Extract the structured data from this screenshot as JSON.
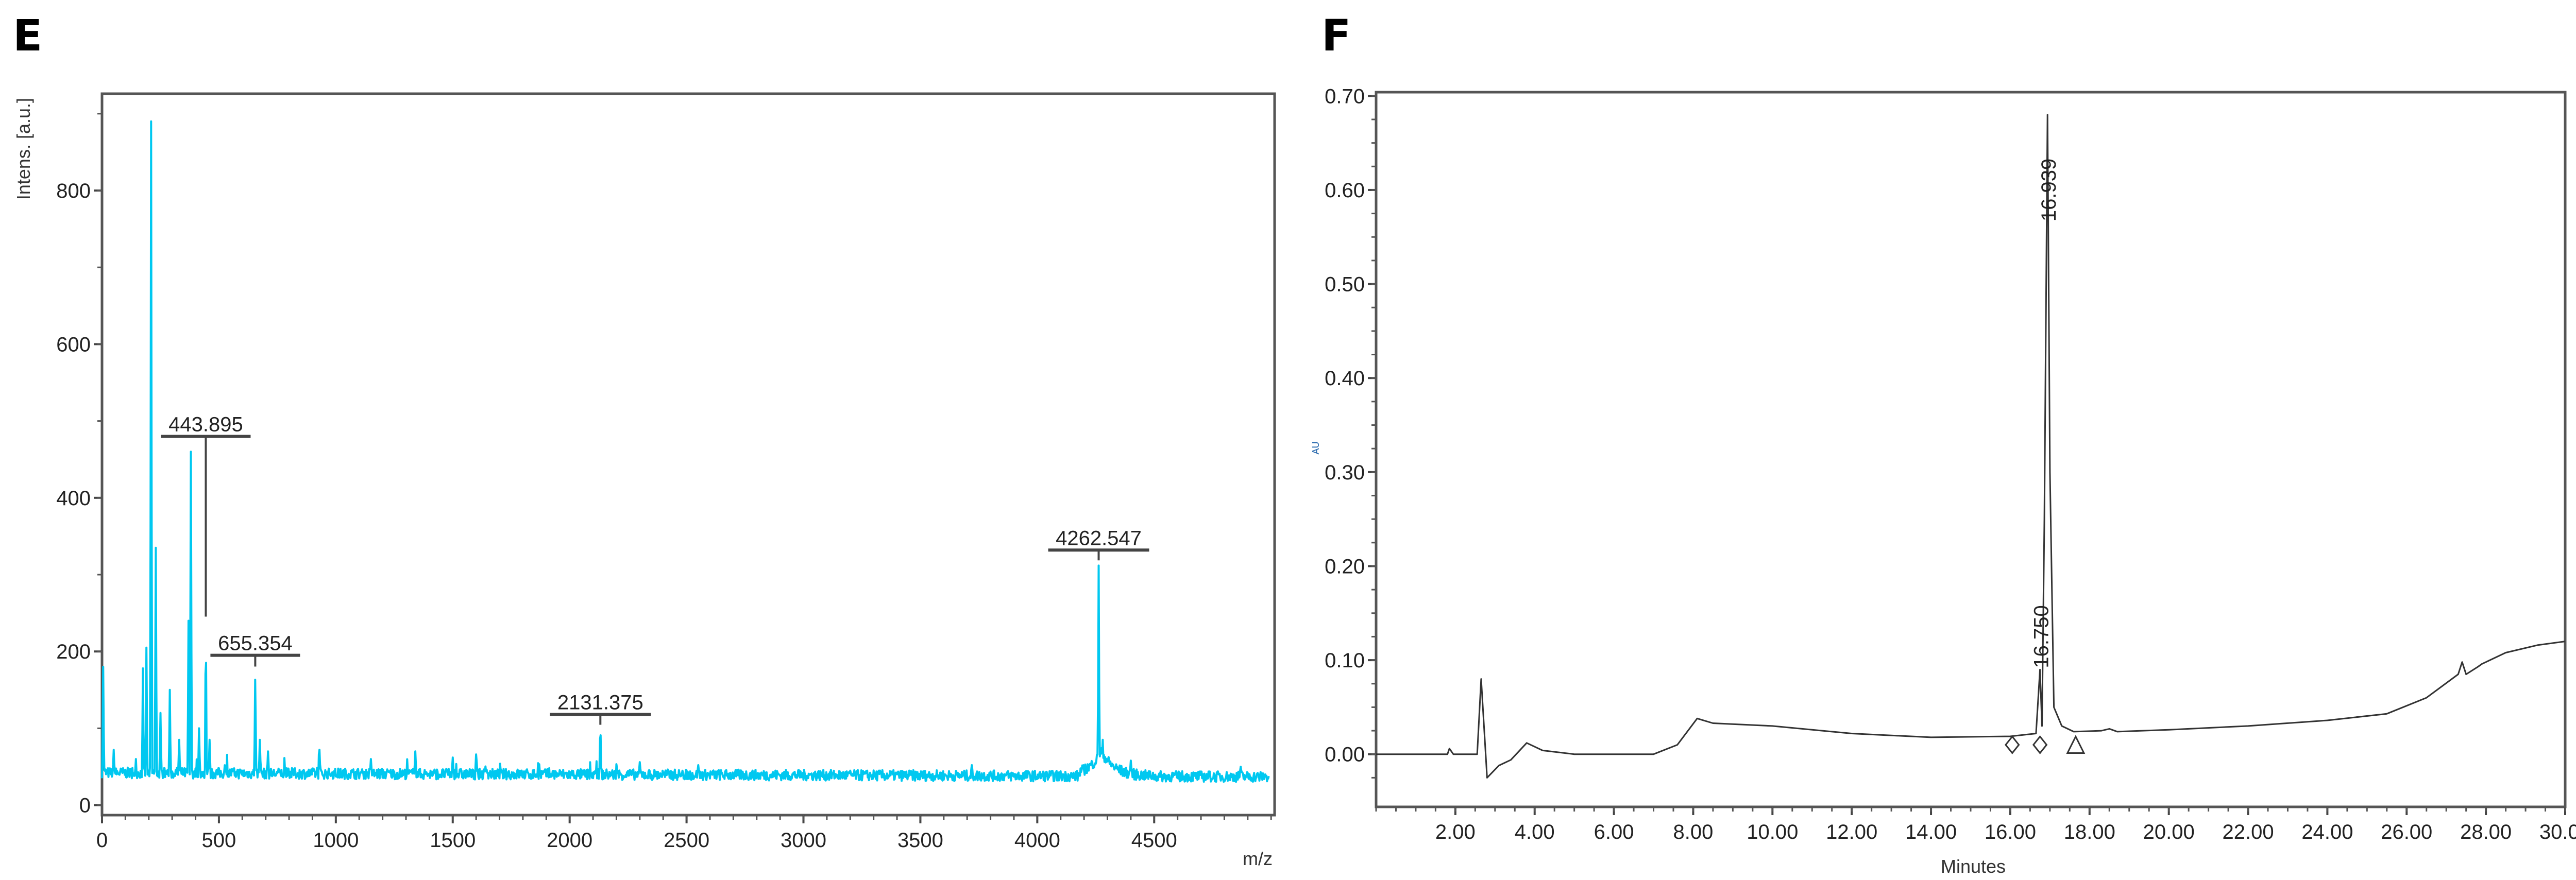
{
  "chart_data": [
    {
      "panel": "E",
      "type": "line",
      "title": "",
      "xlabel": "m/z",
      "ylabel": "Intens. [a.u.]",
      "xlim": [
        0,
        5015
      ],
      "ylim": [
        -13,
        926
      ],
      "xticks": [
        0,
        500,
        1000,
        1500,
        2000,
        2500,
        3000,
        3500,
        4000,
        4500
      ],
      "xtick_labels": [
        "0",
        "500",
        "1000",
        "1500",
        "2000",
        "2500",
        "3000",
        "3500",
        "4000",
        "4500"
      ],
      "yticks": [
        0,
        200,
        400,
        600,
        800
      ],
      "ytick_labels": [
        "0",
        "200",
        "400",
        "600",
        "800"
      ],
      "grid": false,
      "line_color": "#00c8f0",
      "baseline": 42,
      "peaks": [
        {
          "x": 5,
          "y": 180
        },
        {
          "x": 50,
          "y": 72
        },
        {
          "x": 175,
          "y": 178
        },
        {
          "x": 190,
          "y": 205
        },
        {
          "x": 210,
          "y": 890
        },
        {
          "x": 230,
          "y": 335
        },
        {
          "x": 250,
          "y": 120
        },
        {
          "x": 290,
          "y": 150
        },
        {
          "x": 330,
          "y": 85
        },
        {
          "x": 370,
          "y": 240
        },
        {
          "x": 380,
          "y": 460
        },
        {
          "x": 415,
          "y": 100
        },
        {
          "x": 443.895,
          "y": 240
        },
        {
          "x": 460,
          "y": 85
        },
        {
          "x": 655.354,
          "y": 175
        },
        {
          "x": 675,
          "y": 85
        },
        {
          "x": 710,
          "y": 70
        },
        {
          "x": 930,
          "y": 72
        },
        {
          "x": 1150,
          "y": 60
        },
        {
          "x": 1340,
          "y": 70
        },
        {
          "x": 1500,
          "y": 62
        },
        {
          "x": 1600,
          "y": 66
        },
        {
          "x": 2131.375,
          "y": 110
        },
        {
          "x": 2300,
          "y": 56
        },
        {
          "x": 2550,
          "y": 52
        },
        {
          "x": 3720,
          "y": 52
        },
        {
          "x": 4262.547,
          "y": 315
        },
        {
          "x": 4280,
          "y": 85
        },
        {
          "x": 4400,
          "y": 58
        },
        {
          "x": 4870,
          "y": 50
        }
      ],
      "annotations": [
        {
          "text": "443.895",
          "x": 443.895,
          "peak_y": 240,
          "label_y": 480
        },
        {
          "text": "655.354",
          "x": 655.354,
          "peak_y": 175,
          "label_y": 195
        },
        {
          "text": "2131.375",
          "x": 2131.375,
          "peak_y": 110,
          "label_y": 118
        },
        {
          "text": "4262.547",
          "x": 4262.547,
          "peak_y": 315,
          "label_y": 332
        }
      ]
    },
    {
      "panel": "F",
      "type": "line",
      "title": "",
      "xlabel": "Minutes",
      "ylabel": "AU",
      "xlim": [
        0,
        30
      ],
      "ylim": [
        -0.056,
        0.704
      ],
      "xticks": [
        2,
        4,
        6,
        8,
        10,
        12,
        14,
        16,
        18,
        20,
        22,
        24,
        26,
        28,
        30
      ],
      "xtick_labels": [
        "2.00",
        "4.00",
        "6.00",
        "8.00",
        "10.00",
        "12.00",
        "14.00",
        "16.00",
        "18.00",
        "20.00",
        "22.00",
        "24.00",
        "26.00",
        "28.00",
        "30.00"
      ],
      "yticks": [
        0,
        0.1,
        0.2,
        0.3,
        0.4,
        0.5,
        0.6,
        0.7
      ],
      "ytick_labels": [
        "0.00",
        "0.10",
        "0.20",
        "0.30",
        "0.40",
        "0.50",
        "0.60",
        "0.70"
      ],
      "grid": false,
      "line_color": "#333333",
      "points": [
        [
          0,
          0
        ],
        [
          1.8,
          0
        ],
        [
          1.85,
          0.006
        ],
        [
          1.95,
          0
        ],
        [
          2.55,
          0
        ],
        [
          2.65,
          0.08
        ],
        [
          2.75,
          0.01
        ],
        [
          2.8,
          -0.025
        ],
        [
          3.1,
          -0.012
        ],
        [
          3.4,
          -0.006
        ],
        [
          3.8,
          0.012
        ],
        [
          4.2,
          0.004
        ],
        [
          5,
          0
        ],
        [
          7,
          0
        ],
        [
          7.6,
          0.01
        ],
        [
          8.1,
          0.038
        ],
        [
          8.5,
          0.033
        ],
        [
          10,
          0.03
        ],
        [
          12,
          0.022
        ],
        [
          14,
          0.018
        ],
        [
          16,
          0.019
        ],
        [
          16.65,
          0.022
        ],
        [
          16.75,
          0.09
        ],
        [
          16.8,
          0.03
        ],
        [
          16.86,
          0.25
        ],
        [
          16.939,
          0.68
        ],
        [
          17.0,
          0.3
        ],
        [
          17.1,
          0.05
        ],
        [
          17.3,
          0.03
        ],
        [
          17.6,
          0.024
        ],
        [
          18.3,
          0.025
        ],
        [
          18.5,
          0.027
        ],
        [
          18.7,
          0.024
        ],
        [
          20,
          0.026
        ],
        [
          22,
          0.03
        ],
        [
          24,
          0.036
        ],
        [
          25.5,
          0.043
        ],
        [
          26.5,
          0.06
        ],
        [
          27.3,
          0.085
        ],
        [
          27.4,
          0.098
        ],
        [
          27.5,
          0.085
        ],
        [
          27.8,
          0.093
        ],
        [
          27.9,
          0.096
        ],
        [
          28.5,
          0.108
        ],
        [
          29.3,
          0.116
        ],
        [
          30,
          0.12
        ]
      ],
      "markers": [
        {
          "shape": "diamond",
          "x": 16.05,
          "y": 0.01
        },
        {
          "shape": "diamond",
          "x": 16.75,
          "y": 0.01
        },
        {
          "shape": "triangle",
          "x": 17.65,
          "y": 0.01
        }
      ],
      "annotations": [
        {
          "text": "16.939",
          "x": 16.939,
          "y": 0.6
        },
        {
          "text": "16.750",
          "x": 16.75,
          "y": 0.125
        }
      ]
    }
  ]
}
